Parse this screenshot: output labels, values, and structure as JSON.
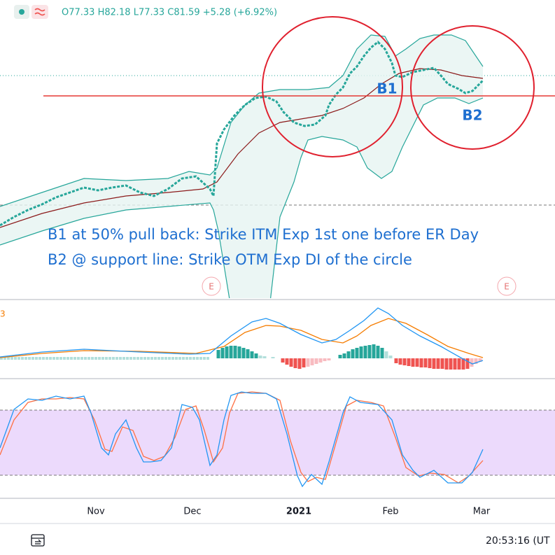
{
  "header": {
    "ohlc": "O77.33 H82.18 L77.33 C81.59 +5.28 (+6.92%)"
  },
  "annotations": {
    "b1": "B1",
    "b2": "B2",
    "note1": "B1 at 50% pull back: Strike ITM Exp 1st one before ER Day",
    "note2": "B2 @ support line: Strike OTM Exp DI of the circle"
  },
  "events": [
    "E",
    "E"
  ],
  "macd_label": "3",
  "x_axis": [
    "Nov",
    "Dec",
    "2021",
    "Feb",
    "Mar"
  ],
  "footer": {
    "time": "20:53:16 (UT"
  }
}
